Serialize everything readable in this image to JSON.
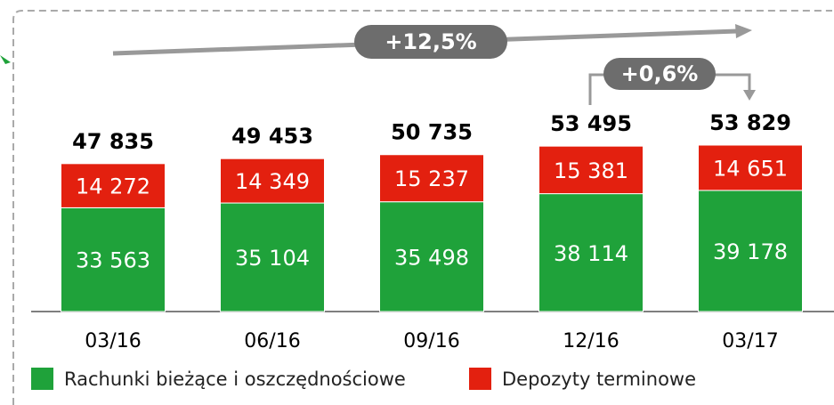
{
  "chart_data": {
    "type": "stacked_bar",
    "categories": [
      "03/16",
      "06/16",
      "09/16",
      "12/16",
      "03/17"
    ],
    "series": [
      {
        "name": "Rachunki bieżące i oszczędnościowe",
        "color": "#1fa23a",
        "values": [
          33563,
          35104,
          35498,
          38114,
          39178
        ],
        "value_labels": [
          "33 563",
          "35 104",
          "35 498",
          "38 114",
          "39 178"
        ]
      },
      {
        "name": "Depozyty terminowe",
        "color": "#e3200f",
        "values": [
          14272,
          14349,
          15237,
          15381,
          14651
        ],
        "value_labels": [
          "14 272",
          "14 349",
          "15 237",
          "15 381",
          "14 651"
        ]
      }
    ],
    "totals": [
      47835,
      49453,
      50735,
      53495,
      53829
    ],
    "total_labels": [
      "47 835",
      "49 453",
      "50 735",
      "53 495",
      "53 829"
    ],
    "annotations": [
      "+12,5%",
      "+0,6%"
    ]
  }
}
